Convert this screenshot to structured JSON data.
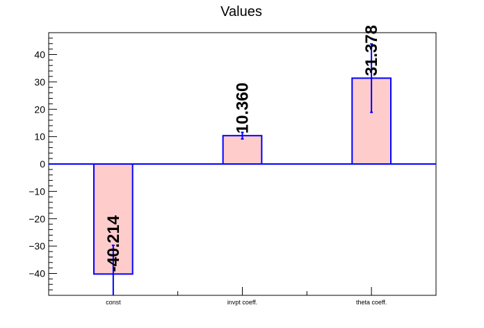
{
  "chart_data": {
    "type": "bar",
    "title": "Values",
    "xlabel": "",
    "ylabel": "",
    "categories": [
      "const",
      "invpt coeff.",
      "theta coeff."
    ],
    "values": [
      -40.214,
      10.36,
      31.378
    ],
    "errors": [
      10.5,
      1.2,
      12.5
    ],
    "value_labels": [
      "-40.214",
      "10.360",
      "31.378"
    ],
    "ylim": [
      -48,
      48
    ],
    "y_ticks": [
      -40,
      -30,
      -20,
      -10,
      0,
      10,
      20,
      30,
      40
    ],
    "y_tick_labels": [
      "−40",
      "−30",
      "−20",
      "−10",
      "0",
      "10",
      "20",
      "30",
      "40"
    ],
    "grid": false,
    "legend": "none",
    "colors": {
      "bar_fill": "#ffcccc",
      "bar_stroke": "#0000ff",
      "zero_line": "#0000ff",
      "axis": "#000000"
    }
  }
}
